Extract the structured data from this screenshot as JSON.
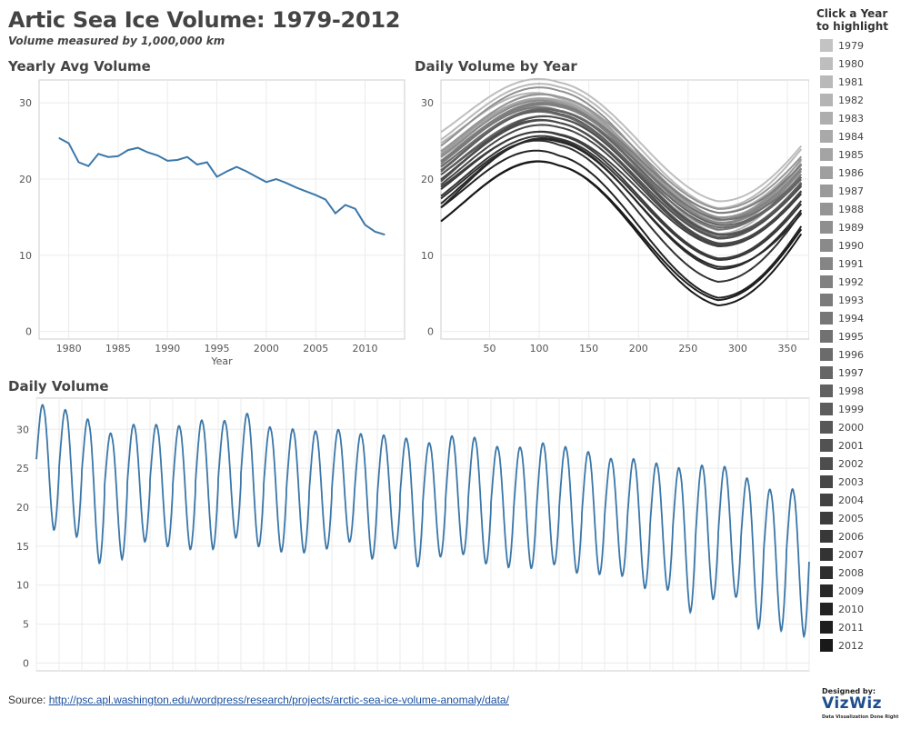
{
  "header": {
    "title": "Artic Sea Ice Volume: 1979-2012",
    "subtitle": "Volume measured by 1,000,000 km"
  },
  "colors": {
    "line": "#3b77a8",
    "grid": "#ebebeb",
    "axis": "#cccccc"
  },
  "chart_data": [
    {
      "type": "line",
      "title": "Yearly Avg Volume",
      "xlabel": "Year",
      "ylabel": "",
      "xlim": [
        1977,
        2014
      ],
      "ylim": [
        -1,
        33
      ],
      "x_ticks": [
        1980,
        1985,
        1990,
        1995,
        2000,
        2005,
        2010
      ],
      "y_ticks": [
        0,
        10,
        20,
        30
      ],
      "grid": true,
      "x": [
        1979,
        1980,
        1981,
        1982,
        1983,
        1984,
        1985,
        1986,
        1987,
        1988,
        1989,
        1990,
        1991,
        1992,
        1993,
        1994,
        1995,
        1996,
        1997,
        1998,
        1999,
        2000,
        2001,
        2002,
        2003,
        2004,
        2005,
        2006,
        2007,
        2008,
        2009,
        2010,
        2011,
        2012
      ],
      "values": [
        25.4,
        24.7,
        22.2,
        21.7,
        23.3,
        22.9,
        23.0,
        23.8,
        24.1,
        23.5,
        23.1,
        22.4,
        22.5,
        22.9,
        21.9,
        22.2,
        20.3,
        21.0,
        21.6,
        21.0,
        20.3,
        19.6,
        20.0,
        19.5,
        18.9,
        18.4,
        17.9,
        17.3,
        15.5,
        16.6,
        16.1,
        14.0,
        13.1,
        12.7
      ]
    },
    {
      "type": "line",
      "title": "Daily Volume by Year",
      "xlabel": "",
      "ylabel": "",
      "xlim": [
        1,
        372
      ],
      "ylim": [
        -1,
        33
      ],
      "x_ticks": [
        50,
        100,
        150,
        200,
        250,
        300,
        350
      ],
      "y_ticks": [
        0,
        10,
        20,
        30
      ],
      "grid": true,
      "series_note_x": "day of year 1-365, one curve per year 1979-2012",
      "series": [
        {
          "year": 1979,
          "max": 32.8,
          "min": 16.9,
          "jan1": 26.2,
          "dec31": 24.5
        },
        {
          "year": 1980,
          "max": 32.2,
          "min": 16.0,
          "jan1": 25.2,
          "dec31": 24.1
        },
        {
          "year": 1981,
          "max": 30.7,
          "min": 12.6,
          "jan1": 24.8,
          "dec31": 21.5
        },
        {
          "year": 1982,
          "max": 29.1,
          "min": 13.1,
          "jan1": 22.9,
          "dec31": 22.1
        },
        {
          "year": 1983,
          "max": 30.4,
          "min": 15.4,
          "jan1": 23.2,
          "dec31": 22.6
        },
        {
          "year": 1984,
          "max": 30.3,
          "min": 14.8,
          "jan1": 23.6,
          "dec31": 22.0
        },
        {
          "year": 1985,
          "max": 30.2,
          "min": 14.4,
          "jan1": 22.9,
          "dec31": 22.1
        },
        {
          "year": 1986,
          "max": 30.9,
          "min": 14.4,
          "jan1": 23.3,
          "dec31": 22.8
        },
        {
          "year": 1987,
          "max": 30.9,
          "min": 15.9,
          "jan1": 23.7,
          "dec31": 23.1
        },
        {
          "year": 1988,
          "max": 31.7,
          "min": 14.8,
          "jan1": 24.4,
          "dec31": 22.2
        },
        {
          "year": 1989,
          "max": 30.0,
          "min": 14.1,
          "jan1": 23.0,
          "dec31": 21.6
        },
        {
          "year": 1990,
          "max": 29.8,
          "min": 14.0,
          "jan1": 22.4,
          "dec31": 21.2
        },
        {
          "year": 1991,
          "max": 29.6,
          "min": 14.5,
          "jan1": 22.0,
          "dec31": 21.5
        },
        {
          "year": 1992,
          "max": 29.8,
          "min": 15.4,
          "jan1": 22.4,
          "dec31": 22.0
        },
        {
          "year": 1993,
          "max": 29.1,
          "min": 13.2,
          "jan1": 22.3,
          "dec31": 20.8
        },
        {
          "year": 1994,
          "max": 29.1,
          "min": 14.6,
          "jan1": 21.6,
          "dec31": 20.4
        },
        {
          "year": 1995,
          "max": 28.5,
          "min": 12.2,
          "jan1": 21.7,
          "dec31": 19.5
        },
        {
          "year": 1996,
          "max": 28.1,
          "min": 13.5,
          "jan1": 20.6,
          "dec31": 20.1
        },
        {
          "year": 1997,
          "max": 29.0,
          "min": 13.8,
          "jan1": 21.0,
          "dec31": 20.4
        },
        {
          "year": 1998,
          "max": 28.7,
          "min": 12.6,
          "jan1": 21.2,
          "dec31": 19.7
        },
        {
          "year": 1999,
          "max": 27.5,
          "min": 12.1,
          "jan1": 20.6,
          "dec31": 19.6
        },
        {
          "year": 2000,
          "max": 27.5,
          "min": 12.0,
          "jan1": 19.9,
          "dec31": 19.4
        },
        {
          "year": 2001,
          "max": 28.1,
          "min": 12.5,
          "jan1": 19.7,
          "dec31": 19.2
        },
        {
          "year": 2002,
          "max": 27.5,
          "min": 11.4,
          "jan1": 20.0,
          "dec31": 18.6
        },
        {
          "year": 2003,
          "max": 26.9,
          "min": 11.2,
          "jan1": 19.3,
          "dec31": 18.5
        },
        {
          "year": 2004,
          "max": 26.0,
          "min": 11.0,
          "jan1": 19.0,
          "dec31": 18.2
        },
        {
          "year": 2005,
          "max": 25.9,
          "min": 9.4,
          "jan1": 18.7,
          "dec31": 17.3
        },
        {
          "year": 2006,
          "max": 25.4,
          "min": 9.2,
          "jan1": 17.8,
          "dec31": 16.9
        },
        {
          "year": 2007,
          "max": 24.6,
          "min": 6.3,
          "jan1": 17.5,
          "dec31": 15.8
        },
        {
          "year": 2008,
          "max": 25.2,
          "min": 8.0,
          "jan1": 16.3,
          "dec31": 16.1
        },
        {
          "year": 2009,
          "max": 25.0,
          "min": 8.3,
          "jan1": 16.8,
          "dec31": 15.6
        },
        {
          "year": 2010,
          "max": 23.2,
          "min": 4.2,
          "jan1": 16.3,
          "dec31": 14.0
        },
        {
          "year": 2011,
          "max": 21.9,
          "min": 3.9,
          "jan1": 14.5,
          "dec31": 13.6
        },
        {
          "year": 2012,
          "max": 21.9,
          "min": 3.2,
          "jan1": 14.5,
          "dec31": 13.0
        }
      ]
    },
    {
      "type": "line",
      "title": "Daily Volume",
      "xlabel": "",
      "ylabel": "",
      "xlim": [
        1979.0,
        2013.0
      ],
      "ylim": [
        -1,
        34
      ],
      "y_ticks": [
        0,
        5,
        10,
        15,
        20,
        25,
        30
      ],
      "grid": true,
      "series_note_x": "continuous daily series 1979-2012 using the per-year max/min of the Daily Volume by Year chart"
    }
  ],
  "legend": {
    "title_line1": "Click a Year",
    "title_line2": "to highlight",
    "years": [
      "1979",
      "1980",
      "1981",
      "1982",
      "1983",
      "1984",
      "1985",
      "1986",
      "1987",
      "1988",
      "1989",
      "1990",
      "1991",
      "1992",
      "1993",
      "1994",
      "1995",
      "1996",
      "1997",
      "1998",
      "1999",
      "2000",
      "2001",
      "2002",
      "2003",
      "2004",
      "2005",
      "2006",
      "2007",
      "2008",
      "2009",
      "2010",
      "2011",
      "2012"
    ]
  },
  "footer": {
    "source_label": "Source:",
    "source_url": "http://psc.apl.washington.edu/wordpress/research/projects/arctic-sea-ice-volume-anomaly/data/",
    "designed_by": "Designed by:",
    "brand": "VizWiz",
    "tagline": "Data Visualization Done Right"
  }
}
